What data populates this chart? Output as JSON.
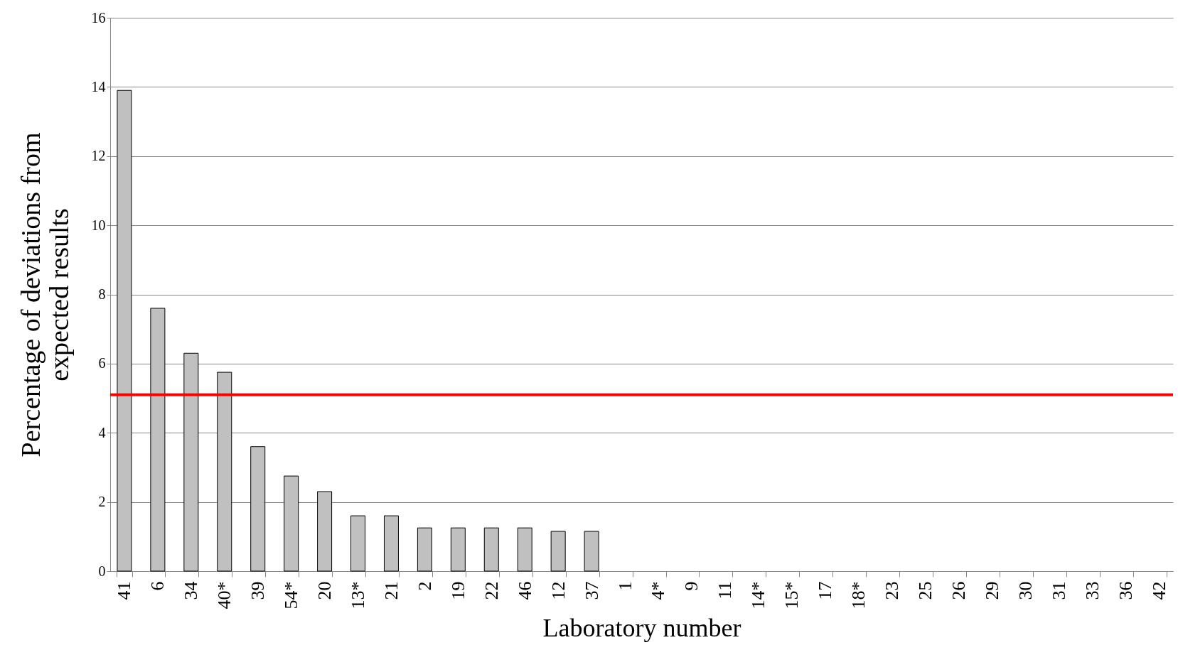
{
  "chart_data": {
    "type": "bar",
    "categories": [
      "41",
      "6",
      "34",
      "40*",
      "39",
      "54*",
      "20",
      "13*",
      "21",
      "2",
      "19",
      "22",
      "46",
      "12",
      "37",
      "1",
      "4*",
      "9",
      "11",
      "14*",
      "15*",
      "17",
      "18*",
      "23",
      "25",
      "26",
      "29",
      "30",
      "31",
      "33",
      "36",
      "42"
    ],
    "values": [
      13.9,
      7.6,
      6.3,
      5.75,
      3.6,
      2.75,
      2.3,
      1.6,
      1.6,
      1.25,
      1.25,
      1.25,
      1.25,
      1.15,
      1.15,
      0,
      0,
      0,
      0,
      0,
      0,
      0,
      0,
      0,
      0,
      0,
      0,
      0,
      0,
      0,
      0,
      0
    ],
    "color": "#c0c0c0",
    "xlabel": "Laboratory number",
    "ylabel": "Percentage of deviations from\nexpected  results",
    "ylim": [
      0,
      16
    ],
    "yticks": [
      0,
      2,
      4,
      6,
      8,
      10,
      12,
      14,
      16
    ],
    "grid": "y",
    "ref_lines": [
      {
        "axis": "y",
        "value": 5.1,
        "color": "#ff0000"
      }
    ]
  }
}
